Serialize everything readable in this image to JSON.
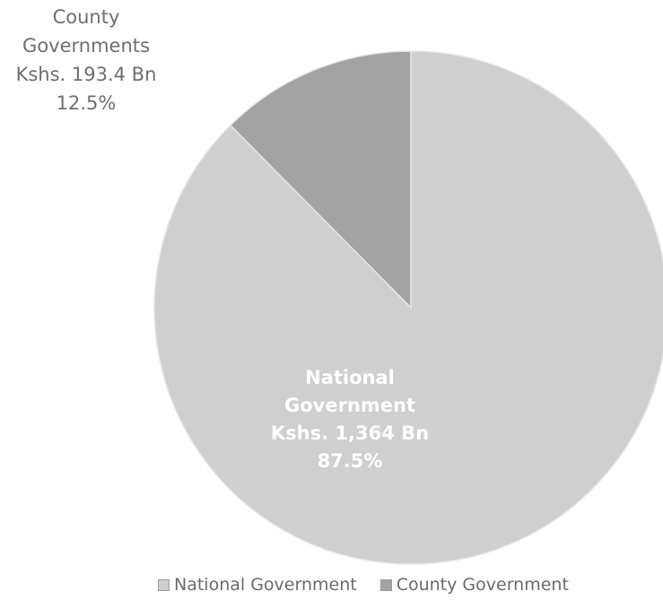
{
  "chart_data": {
    "type": "pie",
    "title": "",
    "slices": [
      {
        "name": "National Government",
        "value": 1364,
        "percent": 87.5,
        "label_lines": [
          "National",
          "Government",
          "Kshs. 1,364 Bn",
          "87.5%"
        ],
        "color": "#cfcfcf",
        "label_color": "#ffffff"
      },
      {
        "name": "County Government",
        "value": 193.4,
        "percent": 12.5,
        "label_lines": [
          "County",
          "Governments",
          "Kshs. 193.4 Bn",
          "12.5%"
        ],
        "color": "#a3a3a3",
        "label_color": "#6f6f6f"
      }
    ],
    "legend": {
      "position": "bottom",
      "items": [
        "National Government",
        "County Government"
      ]
    }
  }
}
